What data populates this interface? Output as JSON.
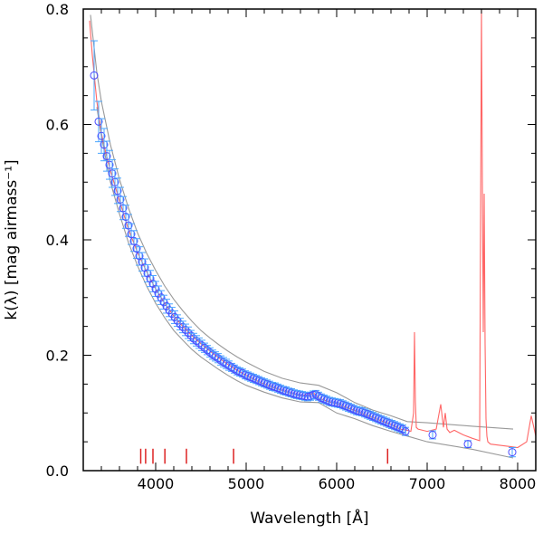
{
  "chart_data": {
    "type": "scatter",
    "title": "",
    "xlabel": "Wavelength [Å]",
    "ylabel": "k(λ) [mag airmass⁻¹]",
    "xlim": [
      3200,
      8200
    ],
    "ylim": [
      0.0,
      0.8
    ],
    "xticks": [
      4000,
      5000,
      6000,
      7000,
      8000
    ],
    "yticks": [
      0.0,
      0.2,
      0.4,
      0.6,
      0.8
    ],
    "x_tick_labels": [
      "4000",
      "5000",
      "6000",
      "7000",
      "8000"
    ],
    "y_tick_labels": [
      "0.0",
      "0.2",
      "0.4",
      "0.6",
      "0.8"
    ],
    "grid": false,
    "legend": "none",
    "colors": {
      "points": "#4a4aff",
      "errorbars": "#4aa6ff",
      "red_curve": "#ff6666",
      "gray_envelope": "#999999",
      "line_markers": "#dd2222",
      "axes": "#000000"
    },
    "series": [
      {
        "kind": "points_with_errorbars",
        "x": [
          3320,
          3370,
          3400,
          3430,
          3460,
          3490,
          3520,
          3550,
          3580,
          3610,
          3640,
          3670,
          3700,
          3730,
          3760,
          3790,
          3820,
          3850,
          3880,
          3910,
          3940,
          3970,
          4000,
          4030,
          4060,
          4090,
          4120,
          4150,
          4180,
          4210,
          4240,
          4270,
          4300,
          4330,
          4360,
          4390,
          4420,
          4450,
          4480,
          4510,
          4540,
          4570,
          4600,
          4630,
          4660,
          4690,
          4720,
          4750,
          4780,
          4810,
          4840,
          4870,
          4900,
          4930,
          4960,
          4990,
          5020,
          5050,
          5080,
          5110,
          5140,
          5170,
          5200,
          5230,
          5260,
          5290,
          5320,
          5350,
          5380,
          5410,
          5440,
          5470,
          5500,
          5530,
          5560,
          5590,
          5620,
          5650,
          5680,
          5710,
          5740,
          5770,
          5800,
          5830,
          5860,
          5890,
          5920,
          5950,
          5980,
          6010,
          6040,
          6070,
          6100,
          6130,
          6160,
          6190,
          6220,
          6250,
          6280,
          6310,
          6340,
          6370,
          6400,
          6430,
          6460,
          6490,
          6520,
          6550,
          6580,
          6610,
          6640,
          6670,
          6700,
          6730,
          6760,
          7060,
          7450,
          7940
        ],
        "y": [
          0.685,
          0.605,
          0.58,
          0.565,
          0.545,
          0.53,
          0.515,
          0.5,
          0.485,
          0.47,
          0.455,
          0.44,
          0.425,
          0.41,
          0.398,
          0.385,
          0.372,
          0.362,
          0.352,
          0.342,
          0.333,
          0.324,
          0.315,
          0.307,
          0.3,
          0.292,
          0.285,
          0.278,
          0.272,
          0.266,
          0.26,
          0.254,
          0.249,
          0.244,
          0.239,
          0.234,
          0.229,
          0.225,
          0.221,
          0.217,
          0.213,
          0.209,
          0.205,
          0.201,
          0.198,
          0.195,
          0.191,
          0.188,
          0.185,
          0.182,
          0.179,
          0.176,
          0.173,
          0.171,
          0.169,
          0.166,
          0.164,
          0.162,
          0.16,
          0.158,
          0.156,
          0.154,
          0.152,
          0.15,
          0.148,
          0.146,
          0.145,
          0.143,
          0.141,
          0.139,
          0.138,
          0.136,
          0.135,
          0.133,
          0.132,
          0.131,
          0.13,
          0.129,
          0.128,
          0.129,
          0.131,
          0.132,
          0.129,
          0.126,
          0.124,
          0.122,
          0.12,
          0.119,
          0.118,
          0.117,
          0.116,
          0.114,
          0.112,
          0.11,
          0.108,
          0.106,
          0.104,
          0.103,
          0.102,
          0.1,
          0.098,
          0.096,
          0.094,
          0.092,
          0.09,
          0.088,
          0.086,
          0.084,
          0.082,
          0.08,
          0.078,
          0.076,
          0.074,
          0.072,
          0.068,
          0.062,
          0.046,
          0.032
        ],
        "err": [
          0.06,
          0.035,
          0.03,
          0.028,
          0.026,
          0.025,
          0.024,
          0.023,
          0.022,
          0.021,
          0.02,
          0.02,
          0.019,
          0.018,
          0.018,
          0.017,
          0.016,
          0.016,
          0.015,
          0.015,
          0.014,
          0.014,
          0.013,
          0.013,
          0.012,
          0.012,
          0.012,
          0.011,
          0.011,
          0.011,
          0.01,
          0.01,
          0.01,
          0.01,
          0.01,
          0.009,
          0.009,
          0.009,
          0.009,
          0.009,
          0.008,
          0.008,
          0.008,
          0.008,
          0.008,
          0.008,
          0.008,
          0.008,
          0.008,
          0.008,
          0.007,
          0.007,
          0.007,
          0.007,
          0.007,
          0.007,
          0.007,
          0.007,
          0.007,
          0.007,
          0.007,
          0.007,
          0.007,
          0.007,
          0.007,
          0.007,
          0.007,
          0.007,
          0.007,
          0.007,
          0.007,
          0.007,
          0.007,
          0.007,
          0.007,
          0.007,
          0.007,
          0.007,
          0.007,
          0.007,
          0.007,
          0.007,
          0.007,
          0.007,
          0.007,
          0.007,
          0.007,
          0.007,
          0.007,
          0.007,
          0.007,
          0.007,
          0.007,
          0.007,
          0.007,
          0.007,
          0.007,
          0.007,
          0.007,
          0.007,
          0.007,
          0.007,
          0.007,
          0.007,
          0.007,
          0.007,
          0.007,
          0.007,
          0.007,
          0.007,
          0.007,
          0.007,
          0.007,
          0.007,
          0.007,
          0.007,
          0.006,
          0.008
        ]
      },
      {
        "kind": "red_curve",
        "x": [
          3270,
          3300,
          3350,
          3400,
          3450,
          3500,
          3600,
          3700,
          3800,
          3900,
          4000,
          4100,
          4200,
          4300,
          4400,
          4500,
          4600,
          4700,
          4800,
          4900,
          5000,
          5100,
          5200,
          5300,
          5400,
          5500,
          5600,
          5700,
          5750,
          5800,
          5900,
          6000,
          6100,
          6200,
          6300,
          6400,
          6500,
          6600,
          6700,
          6780,
          6820,
          6850,
          6860,
          6870,
          6880,
          6900,
          7000,
          7100,
          7150,
          7180,
          7200,
          7220,
          7250,
          7300,
          7400,
          7500,
          7580,
          7600,
          7610,
          7620,
          7630,
          7640,
          7650,
          7660,
          7670,
          7700,
          7800,
          7900,
          8000,
          8100,
          8150,
          8200
        ],
        "y": [
          0.78,
          0.72,
          0.64,
          0.585,
          0.55,
          0.52,
          0.468,
          0.418,
          0.378,
          0.345,
          0.315,
          0.29,
          0.268,
          0.25,
          0.234,
          0.22,
          0.207,
          0.195,
          0.184,
          0.174,
          0.165,
          0.157,
          0.15,
          0.144,
          0.139,
          0.134,
          0.13,
          0.132,
          0.134,
          0.126,
          0.12,
          0.116,
          0.11,
          0.104,
          0.098,
          0.092,
          0.086,
          0.08,
          0.072,
          0.07,
          0.068,
          0.1,
          0.24,
          0.12,
          0.075,
          0.072,
          0.068,
          0.072,
          0.115,
          0.075,
          0.1,
          0.072,
          0.066,
          0.07,
          0.062,
          0.056,
          0.052,
          0.8,
          0.5,
          0.24,
          0.48,
          0.22,
          0.09,
          0.06,
          0.05,
          0.046,
          0.044,
          0.042,
          0.04,
          0.05,
          0.095,
          0.06
        ]
      },
      {
        "kind": "gray_envelope_upper",
        "x": [
          3280,
          3350,
          3400,
          3500,
          3600,
          3700,
          3800,
          3900,
          4000,
          4100,
          4200,
          4300,
          4400,
          4500,
          4600,
          4700,
          4800,
          4900,
          5000,
          5200,
          5400,
          5600,
          5800,
          6000,
          6200,
          6400,
          6600,
          6780,
          7000,
          7500,
          7950
        ],
        "y": [
          0.79,
          0.69,
          0.64,
          0.565,
          0.505,
          0.455,
          0.412,
          0.377,
          0.347,
          0.32,
          0.297,
          0.277,
          0.259,
          0.243,
          0.23,
          0.218,
          0.207,
          0.197,
          0.188,
          0.172,
          0.16,
          0.152,
          0.148,
          0.135,
          0.118,
          0.105,
          0.095,
          0.085,
          0.083,
          0.077,
          0.072
        ]
      },
      {
        "kind": "gray_envelope_lower",
        "x": [
          3350,
          3400,
          3500,
          3600,
          3700,
          3800,
          3900,
          4000,
          4100,
          4200,
          4300,
          4400,
          4500,
          4600,
          4700,
          4800,
          4900,
          5000,
          5200,
          5400,
          5600,
          5800,
          6000,
          6200,
          6400,
          6600,
          6780,
          7000,
          7500,
          7950
        ],
        "y": [
          0.63,
          0.58,
          0.5,
          0.445,
          0.395,
          0.355,
          0.32,
          0.29,
          0.265,
          0.243,
          0.226,
          0.21,
          0.197,
          0.186,
          0.175,
          0.165,
          0.156,
          0.148,
          0.136,
          0.126,
          0.119,
          0.118,
          0.1,
          0.09,
          0.078,
          0.068,
          0.06,
          0.05,
          0.037,
          0.022
        ]
      }
    ],
    "line_marker_positions": [
      3835,
      3889,
      3970,
      4102,
      4340,
      4861,
      6563
    ],
    "line_marker_range": [
      0.012,
      0.038
    ]
  }
}
